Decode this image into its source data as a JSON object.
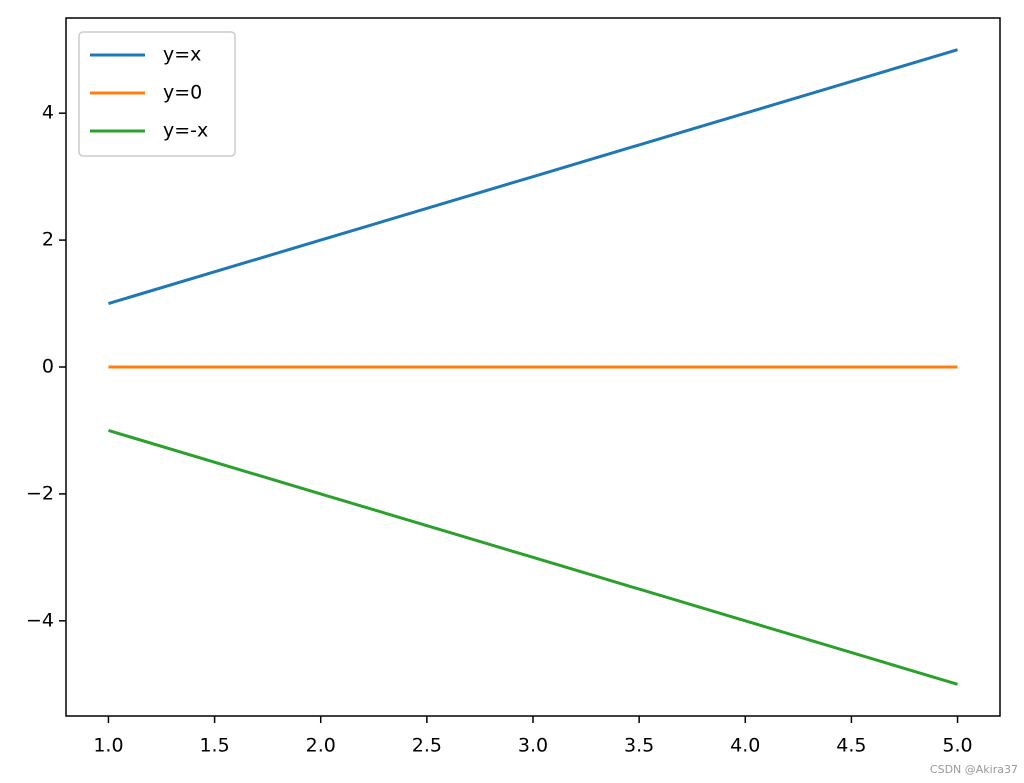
{
  "chart_data": {
    "type": "line",
    "x": [
      1,
      2,
      3,
      4,
      5
    ],
    "series": [
      {
        "name": "y=x",
        "color": "#1f77b4",
        "values": [
          1,
          2,
          3,
          4,
          5
        ]
      },
      {
        "name": "y=0",
        "color": "#ff7f0e",
        "values": [
          0,
          0,
          0,
          0,
          0
        ]
      },
      {
        "name": "y=-x",
        "color": "#2ca02c",
        "values": [
          -1,
          -2,
          -3,
          -4,
          -5
        ]
      }
    ],
    "xlim": [
      0.8,
      5.2
    ],
    "xticks": [
      {
        "value": 1,
        "label": "1.0"
      },
      1.5,
      {
        "value": 2,
        "label": "2.0"
      },
      2.5,
      {
        "value": 3,
        "label": "3.0"
      },
      3.5,
      {
        "value": 4,
        "label": "4.0"
      },
      4.5,
      {
        "value": 5,
        "label": "5.0"
      }
    ],
    "ylim": [
      -5.5,
      5.5
    ],
    "yticks": [
      {
        "value": -4,
        "label": "−4"
      },
      {
        "value": -2,
        "label": "−2"
      },
      0,
      2,
      4
    ],
    "grid": false,
    "legend": "upper-left",
    "watermark": "CSDN @Akira37"
  }
}
